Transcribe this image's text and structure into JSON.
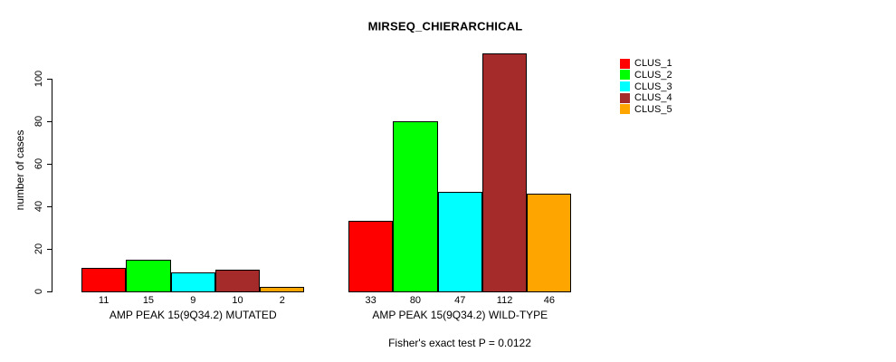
{
  "figure": {
    "background": "#FFFFFF"
  },
  "chart_data": {
    "type": "bar",
    "title": "MIRSEQ_CHIERARCHICAL",
    "subtitle": "Fisher's exact test P = 0.0122",
    "xlabel": "",
    "ylabel": "number of cases",
    "categories": [
      "AMP PEAK 15(9Q34.2) MUTATED",
      "AMP PEAK 15(9Q34.2) WILD-TYPE"
    ],
    "series": [
      {
        "name": "CLUS_1",
        "color": "#FF0000",
        "values": [
          11,
          33
        ]
      },
      {
        "name": "CLUS_2",
        "color": "#00FF00",
        "values": [
          15,
          80
        ]
      },
      {
        "name": "CLUS_3",
        "color": "#00FFFF",
        "values": [
          9,
          47
        ]
      },
      {
        "name": "CLUS_4",
        "color": "#A52A2A",
        "values": [
          10,
          112
        ]
      },
      {
        "name": "CLUS_5",
        "color": "#FFA500",
        "values": [
          2,
          46
        ]
      }
    ],
    "y_axis": {
      "ticks": [
        0,
        20,
        40,
        60,
        80,
        100
      ],
      "range": [
        0,
        115
      ]
    },
    "grid": false,
    "legend_position": "right",
    "bar_value_labels_shown": true,
    "axis_color": "#000000",
    "bar_border_color": "#000000"
  }
}
